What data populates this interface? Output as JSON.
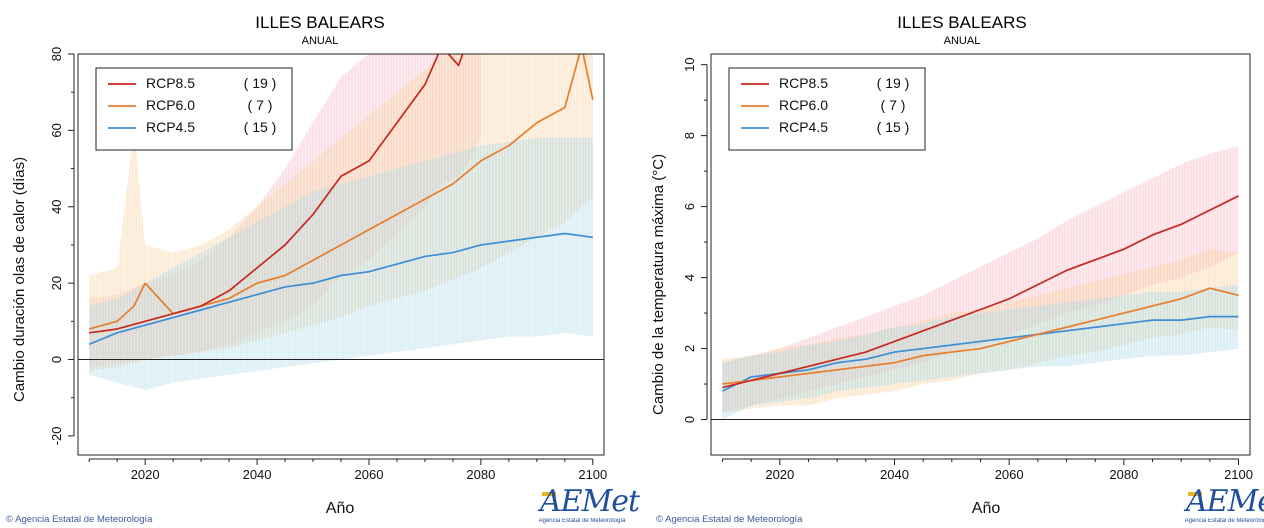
{
  "credit": "© Agencia Estatal de Meteorología",
  "logo": {
    "text": "AEMet",
    "subtitle": "Agencia Estatal de Meteorología"
  },
  "colors": {
    "rcp85": "#c8281e",
    "rcp60": "#e87d2c",
    "rcp45": "#3d8ed6",
    "rcp85_band": "#f6b8c4",
    "rcp60_band": "#f9cf9a",
    "rcp45_band": "#a8d8e8"
  },
  "chart_data": [
    {
      "type": "line",
      "title": "ILLES BALEARS",
      "subtitle": "ANUAL",
      "xlabel": "Año",
      "ylabel": "Cambio duración olas de calor (días)",
      "xlim": [
        2008,
        2102
      ],
      "ylim": [
        -25,
        80
      ],
      "xticks": [
        2020,
        2040,
        2060,
        2080,
        2100
      ],
      "yticks": [
        -20,
        0,
        20,
        40,
        60,
        80
      ],
      "zero_line": true,
      "legend_position": "top-left",
      "series": [
        {
          "name": "RCP8.5",
          "count": "( 19 )",
          "color_key": "rcp85",
          "x": [
            2010,
            2015,
            2020,
            2025,
            2030,
            2035,
            2040,
            2045,
            2050,
            2055,
            2060,
            2065,
            2070,
            2073,
            2076,
            2078,
            2080
          ],
          "y": [
            7,
            8,
            10,
            12,
            14,
            18,
            24,
            30,
            38,
            48,
            52,
            62,
            72,
            82,
            77,
            85,
            92
          ],
          "band_low": [
            -2,
            -1,
            0,
            1,
            2,
            4,
            7,
            10,
            14,
            22,
            26,
            33,
            40,
            46,
            48,
            52,
            58
          ],
          "band_high": [
            16,
            17,
            20,
            22,
            26,
            32,
            40,
            50,
            62,
            74,
            80,
            82,
            84,
            85,
            85,
            85,
            85
          ]
        },
        {
          "name": "RCP6.0",
          "count": "( 7 )",
          "color_key": "rcp60",
          "x": [
            2010,
            2015,
            2018,
            2020,
            2025,
            2030,
            2035,
            2040,
            2045,
            2050,
            2055,
            2060,
            2065,
            2070,
            2075,
            2080,
            2085,
            2090,
            2095,
            2098,
            2100
          ],
          "y": [
            8,
            10,
            14,
            20,
            12,
            14,
            16,
            20,
            22,
            26,
            30,
            34,
            38,
            42,
            46,
            52,
            56,
            62,
            66,
            82,
            68
          ],
          "band_low": [
            -3,
            -2,
            -1,
            0,
            1,
            2,
            3,
            5,
            7,
            9,
            11,
            14,
            16,
            18,
            21,
            24,
            28,
            32,
            36,
            40,
            42
          ],
          "band_high": [
            22,
            24,
            60,
            30,
            28,
            30,
            34,
            40,
            46,
            52,
            58,
            64,
            70,
            76,
            82,
            85,
            85,
            85,
            85,
            85,
            85
          ]
        },
        {
          "name": "RCP4.5",
          "count": "( 15 )",
          "color_key": "rcp45",
          "x": [
            2010,
            2015,
            2020,
            2025,
            2030,
            2035,
            2040,
            2045,
            2050,
            2055,
            2060,
            2065,
            2070,
            2075,
            2080,
            2085,
            2090,
            2095,
            2100
          ],
          "y": [
            4,
            7,
            9,
            11,
            13,
            15,
            17,
            19,
            20,
            22,
            23,
            25,
            27,
            28,
            30,
            31,
            32,
            33,
            32
          ],
          "band_low": [
            -4,
            -6,
            -8,
            -6,
            -5,
            -4,
            -3,
            -2,
            -1,
            0,
            1,
            2,
            3,
            4,
            5,
            6,
            6,
            7,
            6
          ],
          "band_high": [
            14,
            16,
            20,
            24,
            28,
            32,
            36,
            40,
            44,
            46,
            48,
            50,
            52,
            54,
            56,
            57,
            58,
            58,
            58
          ]
        }
      ]
    },
    {
      "type": "line",
      "title": "ILLES BALEARS",
      "subtitle": "ANUAL",
      "xlabel": "Año",
      "ylabel": "Cambio de la temperatura máxima (°C)",
      "xlim": [
        2008,
        2102
      ],
      "ylim": [
        -1,
        10.3
      ],
      "xticks": [
        2020,
        2040,
        2060,
        2080,
        2100
      ],
      "yticks": [
        0,
        2,
        4,
        6,
        8,
        10
      ],
      "zero_line": true,
      "legend_position": "top-left",
      "series": [
        {
          "name": "RCP8.5",
          "count": "( 19 )",
          "color_key": "rcp85",
          "x": [
            2010,
            2015,
            2020,
            2025,
            2030,
            2035,
            2040,
            2045,
            2050,
            2055,
            2060,
            2065,
            2070,
            2075,
            2080,
            2085,
            2090,
            2095,
            2100
          ],
          "y": [
            0.9,
            1.1,
            1.3,
            1.5,
            1.7,
            1.9,
            2.2,
            2.5,
            2.8,
            3.1,
            3.4,
            3.8,
            4.2,
            4.5,
            4.8,
            5.2,
            5.5,
            5.9,
            6.3
          ],
          "band_low": [
            0.2,
            0.4,
            0.6,
            0.8,
            1.0,
            1.2,
            1.4,
            1.6,
            1.9,
            2.1,
            2.4,
            2.7,
            3.0,
            3.2,
            3.5,
            3.8,
            4.0,
            4.3,
            4.7
          ],
          "band_high": [
            1.6,
            1.8,
            2.0,
            2.3,
            2.6,
            2.9,
            3.2,
            3.5,
            3.9,
            4.3,
            4.7,
            5.1,
            5.6,
            6.0,
            6.4,
            6.8,
            7.2,
            7.5,
            7.7
          ]
        },
        {
          "name": "RCP6.0",
          "count": "( 7 )",
          "color_key": "rcp60",
          "x": [
            2010,
            2015,
            2020,
            2025,
            2030,
            2035,
            2040,
            2045,
            2050,
            2055,
            2060,
            2065,
            2070,
            2075,
            2080,
            2085,
            2090,
            2095,
            2100
          ],
          "y": [
            1.0,
            1.1,
            1.2,
            1.3,
            1.4,
            1.5,
            1.6,
            1.8,
            1.9,
            2.0,
            2.2,
            2.4,
            2.6,
            2.8,
            3.0,
            3.2,
            3.4,
            3.7,
            3.5
          ],
          "band_low": [
            0.2,
            0.3,
            0.4,
            0.4,
            0.6,
            0.7,
            0.8,
            1.0,
            1.1,
            1.3,
            1.4,
            1.6,
            1.8,
            1.9,
            2.1,
            2.3,
            2.4,
            2.6,
            2.5
          ],
          "band_high": [
            1.7,
            1.8,
            2.0,
            2.1,
            2.3,
            2.4,
            2.6,
            2.8,
            3.0,
            3.1,
            3.3,
            3.5,
            3.7,
            3.9,
            4.1,
            4.3,
            4.5,
            4.8,
            4.7
          ]
        },
        {
          "name": "RCP4.5",
          "count": "( 15 )",
          "color_key": "rcp45",
          "x": [
            2010,
            2015,
            2020,
            2025,
            2030,
            2035,
            2040,
            2045,
            2050,
            2055,
            2060,
            2065,
            2070,
            2075,
            2080,
            2085,
            2090,
            2095,
            2100
          ],
          "y": [
            0.8,
            1.2,
            1.3,
            1.4,
            1.6,
            1.7,
            1.9,
            2.0,
            2.1,
            2.2,
            2.3,
            2.4,
            2.5,
            2.6,
            2.7,
            2.8,
            2.8,
            2.9,
            2.9
          ],
          "band_low": [
            0.0,
            0.4,
            0.5,
            0.6,
            0.8,
            0.9,
            1.0,
            1.1,
            1.2,
            1.3,
            1.4,
            1.5,
            1.5,
            1.6,
            1.7,
            1.8,
            1.8,
            1.9,
            2.0
          ],
          "band_high": [
            1.6,
            1.8,
            1.9,
            2.1,
            2.2,
            2.4,
            2.6,
            2.7,
            2.9,
            3.0,
            3.1,
            3.2,
            3.3,
            3.4,
            3.5,
            3.6,
            3.6,
            3.7,
            3.8
          ]
        }
      ]
    }
  ]
}
